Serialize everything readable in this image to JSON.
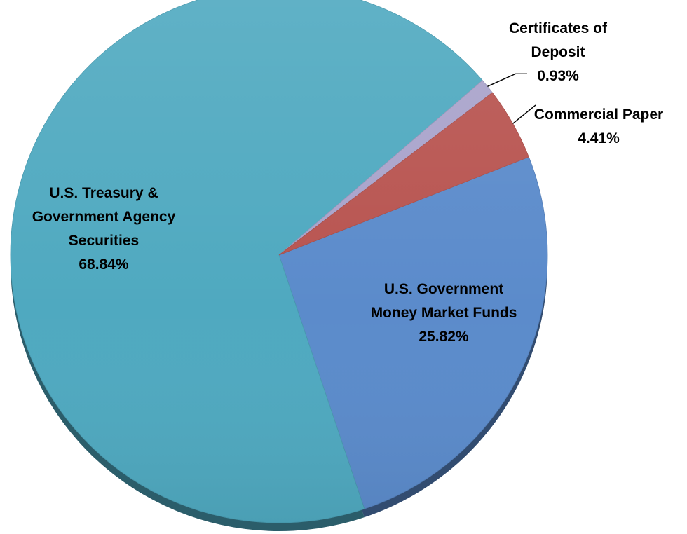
{
  "chart_data": {
    "type": "pie",
    "title": "",
    "slices": [
      {
        "label_lines": [
          "U.S. Government",
          "Money Market Funds"
        ],
        "value": 25.82,
        "display": "25.82%",
        "color": "#5B8BCB"
      },
      {
        "label_lines": [
          "U.S. Treasury &",
          "Government Agency",
          "Securities"
        ],
        "value": 68.84,
        "display": "68.84%",
        "color": "#4FA9C0"
      },
      {
        "label_lines": [
          "Certificates of",
          "Deposit"
        ],
        "value": 0.93,
        "display": "0.93%",
        "color": "#A9A3CB"
      },
      {
        "label_lines": [
          "Commercial Paper"
        ],
        "value": 4.41,
        "display": "4.41%",
        "color": "#B85450"
      }
    ],
    "legend": "none",
    "labels": "on-chart"
  }
}
